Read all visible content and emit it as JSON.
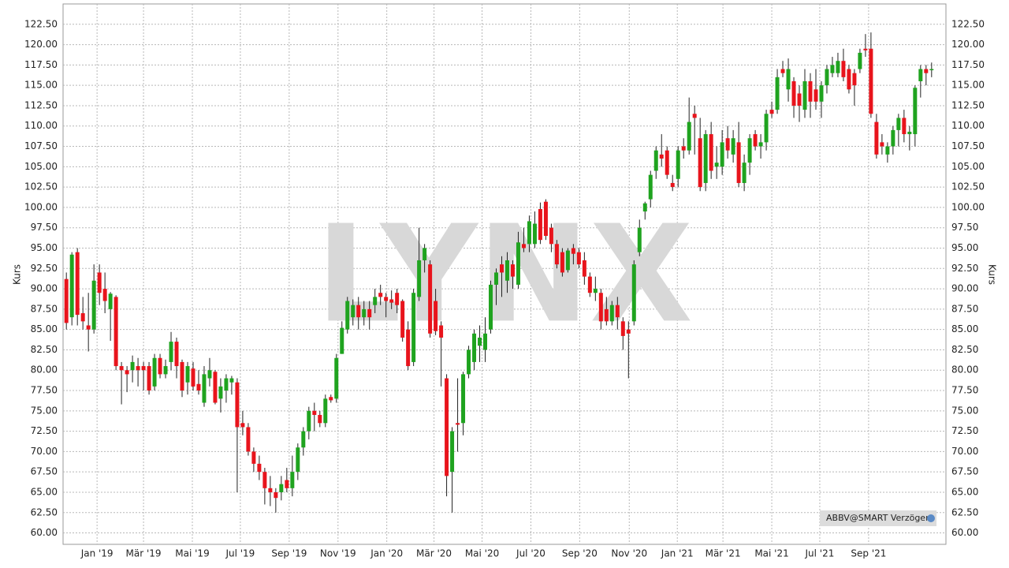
{
  "chart_data": {
    "type": "candlestick",
    "y_label": "Kurs",
    "watermark": "LYNX",
    "badge": "ABBV@SMART Verzögert",
    "up_color": "#1fa31f",
    "down_color": "#e8141c",
    "grid": true,
    "open": [
      91.2,
      86.5,
      94.5,
      87,
      85.5,
      85,
      92,
      90,
      87.5,
      89,
      80.5,
      80,
      80,
      80.5,
      80.5,
      80.5,
      78,
      81.5,
      79.5,
      81,
      83.5,
      81,
      78.5,
      80.2,
      78.3,
      76,
      79,
      79.8,
      76.5,
      77.5,
      78.5,
      78.5,
      73.5,
      73,
      70,
      68.5,
      67.5,
      65.5,
      65,
      65,
      66.5,
      65.5,
      67.5,
      70.5,
      72.5,
      75,
      74.5,
      73.5,
      76.7,
      76.5,
      82,
      85,
      86.5,
      88,
      86.5,
      87.5,
      88,
      89.5,
      89,
      88.7,
      89.5,
      88.5,
      85,
      81,
      89,
      93.5,
      93,
      88.5,
      85.5,
      79,
      67.5,
      73.5,
      73.5,
      79.5,
      81,
      83,
      82.5,
      85,
      90.5,
      93,
      91,
      93,
      90.5,
      95.5,
      95.5,
      95.5,
      99.8,
      100.7,
      97.5,
      95.5,
      94.5,
      92.3,
      95,
      94.5,
      93.5,
      91.5,
      89.5,
      89.5,
      87.5,
      86,
      88,
      86,
      85,
      86,
      94.5,
      99.5,
      101,
      104.5,
      106.5,
      107,
      103,
      103.5,
      107.5,
      107,
      111.5,
      108.5,
      103,
      109,
      105,
      105,
      108.5,
      106.5,
      108,
      103,
      105.5,
      109,
      107.5,
      108,
      112,
      112,
      117,
      114.5,
      115.5,
      114,
      112,
      115.5,
      114.5,
      113,
      115,
      116.5,
      116.5,
      118,
      117,
      116.5,
      117,
      119.5,
      119.5,
      110.5,
      108,
      106.5,
      107.5,
      109.5,
      111,
      109,
      109,
      115.5,
      117,
      117
    ],
    "high": [
      92,
      94.5,
      95,
      89,
      89.5,
      93,
      93,
      92,
      89.6,
      89.2,
      81,
      80.5,
      81.8,
      81.5,
      81,
      81,
      82,
      82,
      81.3,
      84.7,
      84,
      81.3,
      81,
      81,
      80,
      80.5,
      81.5,
      80,
      79,
      79.5,
      79.3,
      79,
      75,
      73.5,
      70.5,
      69.5,
      68,
      67,
      65.5,
      67,
      68,
      69.5,
      71,
      73,
      75.5,
      76,
      75,
      77,
      77,
      82,
      86,
      89,
      88.7,
      89,
      88.5,
      88.5,
      90,
      90.5,
      89.5,
      89.8,
      90,
      88.7,
      86,
      90,
      97.5,
      95.5,
      93.5,
      90,
      86,
      79.5,
      73,
      79,
      79.8,
      83,
      85,
      85.5,
      86.5,
      91,
      92.5,
      94,
      94.5,
      93.5,
      97,
      97.5,
      99,
      99.5,
      100.6,
      101,
      98,
      96,
      95,
      95,
      95.5,
      95,
      94.5,
      92,
      91.5,
      90,
      89,
      88.5,
      89,
      86.5,
      86,
      93.5,
      98.5,
      100.7,
      104.5,
      107.5,
      109,
      107.5,
      104,
      107.5,
      108.5,
      113.5,
      112.5,
      111,
      109.5,
      110.5,
      107.5,
      109.5,
      110,
      109.5,
      110.5,
      106.5,
      109,
      109.5,
      109,
      112,
      113,
      117,
      118,
      118.3,
      116,
      115,
      117,
      116.5,
      117,
      115.5,
      117.5,
      118.5,
      119,
      119.5,
      117.5,
      117,
      119.5,
      121.3,
      121.5,
      111.5,
      109,
      108,
      110,
      111.5,
      112,
      110,
      115,
      117.5,
      117.5,
      117.8
    ],
    "low": [
      85,
      85.5,
      85.5,
      85,
      82.3,
      84.5,
      88,
      87,
      83.6,
      80,
      75.8,
      77.3,
      78.5,
      78,
      77.5,
      77,
      77.5,
      79,
      79,
      80,
      79,
      76.7,
      77,
      77.5,
      77,
      75.5,
      78,
      75.8,
      74.8,
      76,
      77,
      65,
      72,
      69.5,
      67.5,
      66.5,
      63.5,
      63.3,
      62.5,
      64,
      65,
      64.5,
      66.5,
      69.5,
      71.5,
      72.5,
      73,
      73,
      76,
      76,
      82,
      84.5,
      85.5,
      85,
      85.5,
      85,
      87,
      88,
      86.5,
      87.5,
      87,
      83.5,
      80,
      80.5,
      88.5,
      92,
      84,
      84.3,
      78,
      64.5,
      62.5,
      70,
      72,
      79,
      80,
      81,
      81,
      84.5,
      88,
      89,
      89.5,
      90,
      90,
      94.5,
      94.5,
      95,
      95.5,
      96,
      94.5,
      92.5,
      91.5,
      92,
      93,
      92.5,
      90.5,
      89,
      88.5,
      85,
      85.5,
      85.5,
      85,
      82.5,
      79,
      85.5,
      94,
      98.5,
      100,
      103.5,
      105,
      103.5,
      102,
      102.5,
      106,
      106.5,
      106.5,
      102,
      102,
      103.5,
      103.5,
      104,
      106,
      105.5,
      102.5,
      102,
      104,
      107,
      106,
      107,
      111,
      111.5,
      116,
      113,
      111,
      110.5,
      111,
      111,
      112,
      111,
      114,
      116,
      116,
      115.5,
      114,
      112.5,
      116.5,
      118.5,
      111,
      106,
      106.5,
      105.5,
      106.5,
      107.5,
      108,
      107,
      107.5,
      113.5,
      115,
      116
    ],
    "close": [
      85.8,
      94.2,
      86.8,
      86,
      85,
      91,
      89.5,
      88.5,
      89.4,
      80.5,
      80,
      79.5,
      81,
      80,
      80,
      77.5,
      81.5,
      79.5,
      80.5,
      83.5,
      80.5,
      77.5,
      80.5,
      78,
      77.5,
      79.5,
      80,
      76,
      78,
      79,
      79,
      73,
      73,
      70,
      68.5,
      67.5,
      65.5,
      65,
      64.3,
      66,
      65.5,
      67.5,
      70.5,
      72.5,
      75,
      74.5,
      73.5,
      76.5,
      76.3,
      81.5,
      85.2,
      88.5,
      88,
      86.5,
      87.5,
      86.5,
      89,
      89,
      88.5,
      88.3,
      88,
      84,
      80.5,
      89.5,
      93.5,
      95,
      84.5,
      84.8,
      84,
      67,
      72.5,
      73.3,
      79.5,
      82.5,
      84.5,
      84,
      84.5,
      90.5,
      92,
      92,
      93.5,
      91.5,
      95.7,
      95,
      98.3,
      98,
      96,
      96.5,
      95.5,
      93,
      92,
      94.7,
      94.3,
      93,
      91.5,
      89.5,
      90,
      86,
      86,
      88,
      86.5,
      84.2,
      84.5,
      93,
      97.5,
      100.5,
      104,
      107,
      106,
      104,
      102.5,
      107,
      107,
      110.5,
      111,
      102.5,
      109,
      104.5,
      105.5,
      108,
      107,
      108.5,
      103,
      105.5,
      108.5,
      107.5,
      108,
      111.5,
      111.5,
      116,
      116.5,
      117,
      112.5,
      112.5,
      115.5,
      113,
      113,
      115,
      117,
      117.5,
      118,
      116,
      114.5,
      115,
      119,
      119.3,
      111.5,
      106.5,
      107.5,
      107.5,
      109.5,
      111,
      109,
      109.3,
      114.7,
      117,
      116.5,
      117
    ],
    "xlim": [
      -0.6,
      157.6
    ],
    "xticks": [
      {
        "value": 5.57,
        "label": "Jan '19"
      },
      {
        "value": 14,
        "label": "Mär '19"
      },
      {
        "value": 22.86,
        "label": "Mai '19"
      },
      {
        "value": 31.57,
        "label": "Jul '19"
      },
      {
        "value": 40.43,
        "label": "Sep '19"
      },
      {
        "value": 49.29,
        "label": "Nov '19"
      },
      {
        "value": 58.14,
        "label": "Jan '20"
      },
      {
        "value": 66.71,
        "label": "Mär '20"
      },
      {
        "value": 75.43,
        "label": "Mai '20"
      },
      {
        "value": 84.29,
        "label": "Jul '20"
      },
      {
        "value": 93.14,
        "label": "Sep '20"
      },
      {
        "value": 102.14,
        "label": "Nov '20"
      },
      {
        "value": 110.86,
        "label": "Jan '21"
      },
      {
        "value": 119.14,
        "label": "Mär '21"
      },
      {
        "value": 128,
        "label": "Mai '21"
      },
      {
        "value": 136.71,
        "label": "Jul '21"
      },
      {
        "value": 145.57,
        "label": "Sep '21"
      }
    ],
    "ylim": [
      58.6,
      125
    ],
    "yticks": [
      {
        "value": 60,
        "label": "60.00"
      },
      {
        "value": 62.5,
        "label": "62.50"
      },
      {
        "value": 65,
        "label": "65.00"
      },
      {
        "value": 67.5,
        "label": "67.50"
      },
      {
        "value": 70,
        "label": "70.00"
      },
      {
        "value": 72.5,
        "label": "72.50"
      },
      {
        "value": 75,
        "label": "75.00"
      },
      {
        "value": 77.5,
        "label": "77.50"
      },
      {
        "value": 80,
        "label": "80.00"
      },
      {
        "value": 82.5,
        "label": "82.50"
      },
      {
        "value": 85,
        "label": "85.00"
      },
      {
        "value": 87.5,
        "label": "87.50"
      },
      {
        "value": 90,
        "label": "90.00"
      },
      {
        "value": 92.5,
        "label": "92.50"
      },
      {
        "value": 95,
        "label": "95.00"
      },
      {
        "value": 97.5,
        "label": "97.50"
      },
      {
        "value": 100,
        "label": "100.00"
      },
      {
        "value": 102.5,
        "label": "102.50"
      },
      {
        "value": 105,
        "label": "105.00"
      },
      {
        "value": 107.5,
        "label": "107.50"
      },
      {
        "value": 110,
        "label": "110.00"
      },
      {
        "value": 112.5,
        "label": "112.50"
      },
      {
        "value": 115,
        "label": "115.00"
      },
      {
        "value": 117.5,
        "label": "117.50"
      },
      {
        "value": 120,
        "label": "120.00"
      },
      {
        "value": 122.5,
        "label": "122.50"
      }
    ]
  }
}
